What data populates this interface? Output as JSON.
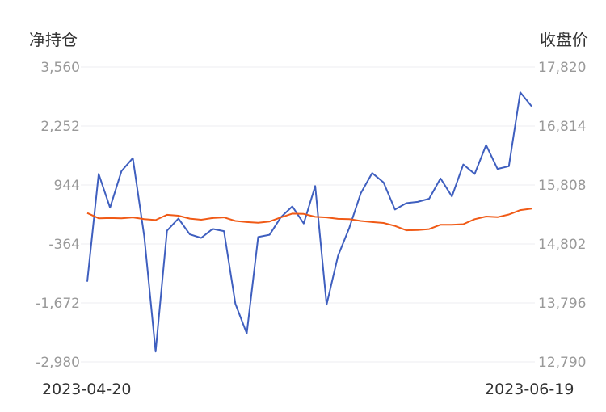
{
  "chart_data": {
    "type": "line",
    "left_axis_title": "净持仓",
    "right_axis_title": "收盘价",
    "left_ticks": [
      "3,560",
      "2,252",
      "944",
      "-364",
      "-1,672",
      "-2,980"
    ],
    "right_ticks": [
      "17,820",
      "16,814",
      "15,808",
      "14,802",
      "13,796",
      "12,790"
    ],
    "left_range": [
      -2980,
      3560
    ],
    "right_range": [
      12790,
      17820
    ],
    "x_start_label": "2023-04-20",
    "x_end_label": "2023-06-19",
    "grid": true,
    "series": [
      {
        "axis": "left",
        "color": "#3f5fbf",
        "values": [
          -1200,
          1190,
          440,
          1250,
          1540,
          -190,
          -2750,
          -70,
          200,
          -150,
          -230,
          -30,
          -80,
          -1690,
          -2350,
          -210,
          -160,
          230,
          470,
          90,
          920,
          -1710,
          -630,
          0,
          760,
          1210,
          1000,
          400,
          540,
          570,
          640,
          1090,
          690,
          1400,
          1190,
          1830,
          1300,
          1360,
          3000,
          2690
        ]
      },
      {
        "axis": "right",
        "color": "#f05a16",
        "values": [
          15330,
          15240,
          15245,
          15240,
          15255,
          15225,
          15210,
          15300,
          15285,
          15235,
          15215,
          15245,
          15255,
          15195,
          15175,
          15165,
          15185,
          15255,
          15320,
          15315,
          15265,
          15255,
          15230,
          15225,
          15195,
          15175,
          15160,
          15110,
          15035,
          15040,
          15055,
          15130,
          15130,
          15140,
          15225,
          15270,
          15260,
          15305,
          15380,
          15405
        ]
      }
    ]
  }
}
